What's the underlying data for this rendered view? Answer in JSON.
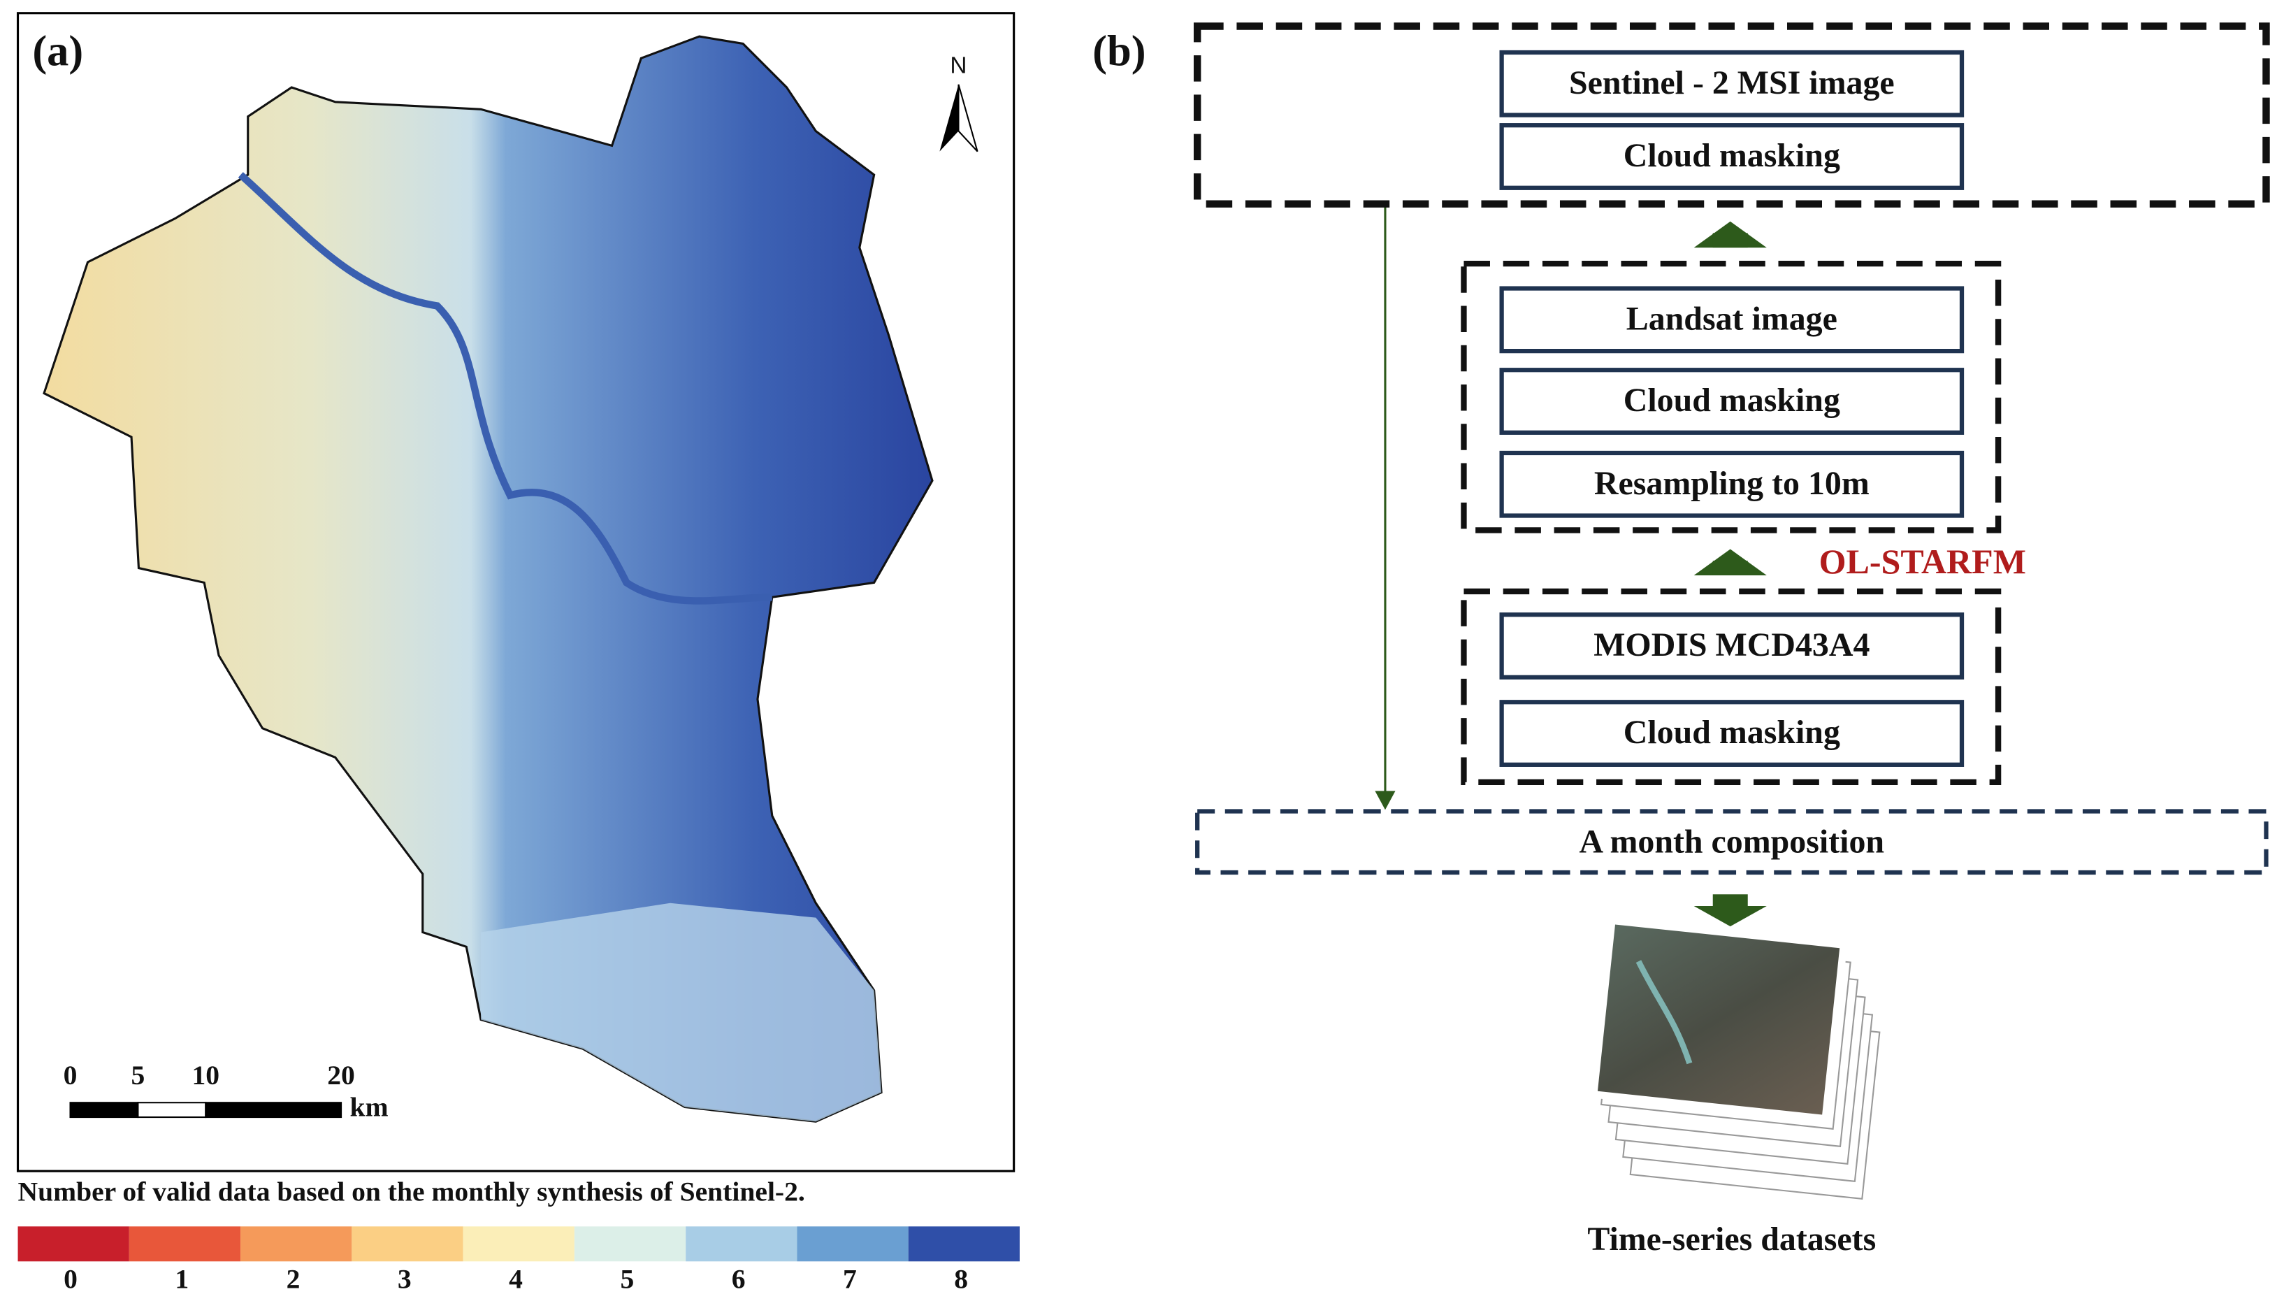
{
  "panel_a": {
    "label": "(a)",
    "north": "N",
    "scale_bar": {
      "ticks": [
        0,
        5,
        10,
        20
      ],
      "unit": "km"
    },
    "caption": "Number of valid data based on the monthly synthesis of Sentinel-2.",
    "legend": [
      {
        "label": "0",
        "color": "#c81f2b"
      },
      {
        "label": "1",
        "color": "#e8573a"
      },
      {
        "label": "2",
        "color": "#f59a5a"
      },
      {
        "label": "3",
        "color": "#fbcf84"
      },
      {
        "label": "4",
        "color": "#fbeeb8"
      },
      {
        "label": "5",
        "color": "#dcefe8"
      },
      {
        "label": "6",
        "color": "#a8cde6"
      },
      {
        "label": "7",
        "color": "#6a9fd2"
      },
      {
        "label": "8",
        "color": "#2f4fa8"
      }
    ]
  },
  "panel_b": {
    "label": "(b)",
    "groups": [
      {
        "items": [
          "Sentinel - 2 MSI image",
          "Cloud masking"
        ]
      },
      {
        "items": [
          "Landsat image",
          "Cloud masking",
          "Resampling to 10m"
        ]
      },
      {
        "items": [
          "MODIS MCD43A4",
          "Cloud masking"
        ]
      }
    ],
    "method": "OL-STARFM",
    "composition": "A month composition",
    "output": "Time-series datasets"
  }
}
